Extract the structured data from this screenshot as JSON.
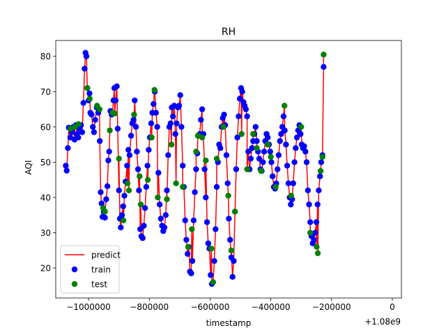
{
  "chart_data": {
    "type": "scatter",
    "title": "RH",
    "xlabel": "timestamp",
    "ylabel": "AQI",
    "x_offset_label": "+1.08e9",
    "xlim": [
      -1108000,
      30000
    ],
    "ylim": [
      11.5,
      84.5
    ],
    "grid": false,
    "legend_position": "lower-left",
    "x_ticks": [
      {
        "value": -1000000,
        "label": "−1000000"
      },
      {
        "value": -800000,
        "label": "−800000"
      },
      {
        "value": -600000,
        "label": "−600000"
      },
      {
        "value": -400000,
        "label": "−400000"
      },
      {
        "value": -200000,
        "label": "−200000"
      },
      {
        "value": 0,
        "label": "0"
      }
    ],
    "y_ticks": [
      {
        "value": 20,
        "label": "20"
      },
      {
        "value": 30,
        "label": "30"
      },
      {
        "value": 40,
        "label": "40"
      },
      {
        "value": 50,
        "label": "50"
      },
      {
        "value": 60,
        "label": "60"
      },
      {
        "value": 70,
        "label": "70"
      },
      {
        "value": 80,
        "label": "80"
      }
    ],
    "legend": [
      {
        "label": "predict",
        "kind": "line",
        "color": "#ff0000"
      },
      {
        "label": "train",
        "kind": "marker",
        "color": "#0000ff"
      },
      {
        "label": "test",
        "kind": "marker",
        "color": "#008000"
      }
    ],
    "colors": {
      "predict": "#ff0000",
      "train": "#0000ff",
      "test": "#008000"
    },
    "series": [
      {
        "name": "train",
        "points": [
          [
            -1075000,
            49
          ],
          [
            -1072000,
            47.6
          ],
          [
            -1068000,
            54
          ],
          [
            -1065000,
            59.8
          ],
          [
            -1060000,
            57
          ],
          [
            -1055000,
            58.5
          ],
          [
            -1050000,
            60
          ],
          [
            -1046000,
            56.4
          ],
          [
            -1042000,
            60.5
          ],
          [
            -1038000,
            58
          ],
          [
            -1034000,
            57
          ],
          [
            -1030000,
            59.5
          ],
          [
            -1025000,
            60.5
          ],
          [
            -1021000,
            58.5
          ],
          [
            -1017000,
            66.8
          ],
          [
            -1013000,
            76.5
          ],
          [
            -1010000,
            81
          ],
          [
            -1007000,
            80
          ],
          [
            -1004000,
            71
          ],
          [
            -1000000,
            67.5
          ],
          [
            -997000,
            69.5
          ],
          [
            -994000,
            64
          ],
          [
            -990000,
            63.5
          ],
          [
            -986000,
            60
          ],
          [
            -982000,
            58.5
          ],
          [
            -978000,
            62
          ],
          [
            -973000,
            65.5
          ],
          [
            -968000,
            64
          ],
          [
            -963000,
            56
          ],
          [
            -960000,
            41.5
          ],
          [
            -957000,
            38.3
          ],
          [
            -954000,
            34.5
          ],
          [
            -950000,
            36
          ],
          [
            -946000,
            34.3
          ],
          [
            -942000,
            39.5
          ],
          [
            -938000,
            43.2
          ],
          [
            -935000,
            50.5
          ],
          [
            -932000,
            53
          ],
          [
            -928000,
            64.5
          ],
          [
            -924000,
            63.5
          ],
          [
            -918000,
            67.5
          ],
          [
            -915000,
            71
          ],
          [
            -911000,
            67.5
          ],
          [
            -907000,
            71.5
          ],
          [
            -904000,
            59.5
          ],
          [
            -900000,
            42
          ],
          [
            -897000,
            34
          ],
          [
            -894000,
            31.5
          ],
          [
            -890000,
            35
          ],
          [
            -886000,
            37.5
          ],
          [
            -882000,
            40.5
          ],
          [
            -878000,
            44.5
          ],
          [
            -873000,
            49
          ],
          [
            -869000,
            53.5
          ],
          [
            -865000,
            52
          ],
          [
            -860000,
            57.5
          ],
          [
            -856000,
            61
          ],
          [
            -852000,
            62
          ],
          [
            -848000,
            67.5
          ],
          [
            -844000,
            60
          ],
          [
            -841000,
            53
          ],
          [
            -837000,
            48
          ],
          [
            -834000,
            42
          ],
          [
            -830000,
            31
          ],
          [
            -826000,
            29
          ],
          [
            -822000,
            28.5
          ],
          [
            -818000,
            32
          ],
          [
            -814000,
            37
          ],
          [
            -810000,
            43
          ],
          [
            -806000,
            49
          ],
          [
            -802000,
            53.5
          ],
          [
            -798000,
            57
          ],
          [
            -794000,
            61
          ],
          [
            -790000,
            64
          ],
          [
            -786000,
            66.5
          ],
          [
            -782000,
            70
          ],
          [
            -778000,
            64
          ],
          [
            -774000,
            60
          ],
          [
            -770000,
            47
          ],
          [
            -766000,
            38
          ],
          [
            -762000,
            34
          ],
          [
            -758000,
            32
          ],
          [
            -754000,
            30.5
          ],
          [
            -750000,
            31.5
          ],
          [
            -746000,
            35
          ],
          [
            -742000,
            42
          ],
          [
            -738000,
            52
          ],
          [
            -734000,
            60
          ],
          [
            -730000,
            61
          ],
          [
            -726000,
            65.5
          ],
          [
            -722000,
            63
          ],
          [
            -718000,
            66
          ],
          [
            -714000,
            58
          ],
          [
            -710000,
            61
          ],
          [
            -706000,
            65.5
          ],
          [
            -702000,
            66
          ],
          [
            -698000,
            69
          ],
          [
            -694000,
            60
          ],
          [
            -690000,
            49
          ],
          [
            -686000,
            43
          ],
          [
            -682000,
            33.5
          ],
          [
            -678000,
            28
          ],
          [
            -674000,
            24
          ],
          [
            -670000,
            26
          ],
          [
            -666000,
            19
          ],
          [
            -662000,
            18.5
          ],
          [
            -658000,
            22
          ],
          [
            -654000,
            33.5
          ],
          [
            -650000,
            41.5
          ],
          [
            -646000,
            48
          ],
          [
            -642000,
            52.5
          ],
          [
            -638000,
            57.5
          ],
          [
            -634000,
            58
          ],
          [
            -630000,
            62
          ],
          [
            -626000,
            65
          ],
          [
            -622000,
            58
          ],
          [
            -618000,
            48
          ],
          [
            -614000,
            40
          ],
          [
            -610000,
            33
          ],
          [
            -606000,
            27
          ],
          [
            -602000,
            25.5
          ],
          [
            -598000,
            18
          ],
          [
            -594000,
            15.5
          ],
          [
            -590000,
            16
          ],
          [
            -586000,
            22
          ],
          [
            -582000,
            31
          ],
          [
            -578000,
            43
          ],
          [
            -574000,
            50
          ],
          [
            -570000,
            55
          ],
          [
            -566000,
            54
          ],
          [
            -562000,
            60
          ],
          [
            -558000,
            62.5
          ],
          [
            -554000,
            63.5
          ],
          [
            -550000,
            60.5
          ],
          [
            -546000,
            52
          ],
          [
            -542000,
            44
          ],
          [
            -538000,
            34
          ],
          [
            -534000,
            28
          ],
          [
            -530000,
            23
          ],
          [
            -526000,
            17.5
          ],
          [
            -522000,
            22
          ],
          [
            -518000,
            36
          ],
          [
            -514000,
            48
          ],
          [
            -510000,
            57
          ],
          [
            -506000,
            63
          ],
          [
            -502000,
            68
          ],
          [
            -498000,
            71
          ],
          [
            -494000,
            70
          ],
          [
            -490000,
            67
          ],
          [
            -486000,
            66
          ],
          [
            -482000,
            65
          ],
          [
            -478000,
            63
          ],
          [
            -474000,
            53
          ],
          [
            -470000,
            48
          ],
          [
            -466000,
            51
          ],
          [
            -462000,
            54
          ],
          [
            -458000,
            56
          ],
          [
            -454000,
            58
          ],
          [
            -450000,
            60
          ],
          [
            -446000,
            56
          ],
          [
            -442000,
            53
          ],
          [
            -438000,
            51
          ],
          [
            -434000,
            48
          ],
          [
            -430000,
            47.5
          ],
          [
            -426000,
            50
          ],
          [
            -422000,
            53
          ],
          [
            -418000,
            56
          ],
          [
            -414000,
            58
          ],
          [
            -410000,
            57
          ],
          [
            -406000,
            55
          ],
          [
            -402000,
            53
          ],
          [
            -398000,
            50
          ],
          [
            -394000,
            46
          ],
          [
            -390000,
            43
          ],
          [
            -386000,
            42.5
          ],
          [
            -382000,
            44
          ],
          [
            -378000,
            48
          ],
          [
            -374000,
            52
          ],
          [
            -370000,
            56
          ],
          [
            -366000,
            58
          ],
          [
            -362000,
            60
          ],
          [
            -358000,
            63
          ],
          [
            -354000,
            59
          ],
          [
            -350000,
            55
          ],
          [
            -346000,
            49
          ],
          [
            -342000,
            44
          ],
          [
            -338000,
            40
          ],
          [
            -334000,
            38
          ],
          [
            -330000,
            39.5
          ],
          [
            -326000,
            44
          ],
          [
            -322000,
            50
          ],
          [
            -318000,
            54
          ],
          [
            -314000,
            57
          ],
          [
            -310000,
            59
          ],
          [
            -306000,
            60.5
          ],
          [
            -302000,
            58
          ],
          [
            -298000,
            55
          ],
          [
            -294000,
            54
          ],
          [
            -290000,
            54.5
          ],
          [
            -286000,
            53
          ],
          [
            -282000,
            50
          ],
          [
            -278000,
            42
          ],
          [
            -274000,
            38
          ],
          [
            -270000,
            33
          ],
          [
            -266000,
            29
          ],
          [
            -262000,
            27
          ],
          [
            -258000,
            28
          ],
          [
            -254000,
            30
          ],
          [
            -250000,
            33
          ],
          [
            -246000,
            38
          ],
          [
            -242000,
            42
          ],
          [
            -238000,
            46
          ],
          [
            -234000,
            50
          ],
          [
            -230000,
            52
          ],
          [
            -226000,
            77
          ]
        ]
      },
      {
        "name": "test",
        "points": [
          [
            -1060000,
            59.5
          ],
          [
            -1045000,
            60
          ],
          [
            -1033000,
            60.8
          ],
          [
            -1004000,
            71
          ],
          [
            -996000,
            68
          ],
          [
            -972000,
            66
          ],
          [
            -964000,
            65
          ],
          [
            -952000,
            37
          ],
          [
            -946000,
            36
          ],
          [
            -930000,
            59
          ],
          [
            -921000,
            64
          ],
          [
            -914000,
            63.8
          ],
          [
            -900000,
            51
          ],
          [
            -885000,
            33.5
          ],
          [
            -872000,
            44
          ],
          [
            -867000,
            42
          ],
          [
            -850000,
            63.5
          ],
          [
            -832000,
            46
          ],
          [
            -828000,
            38
          ],
          [
            -805000,
            45
          ],
          [
            -792000,
            57
          ],
          [
            -783000,
            70.5
          ],
          [
            -772000,
            40
          ],
          [
            -742000,
            39.5
          ],
          [
            -727000,
            55
          ],
          [
            -712000,
            44
          ],
          [
            -690000,
            43
          ],
          [
            -672000,
            26
          ],
          [
            -660000,
            31
          ],
          [
            -646000,
            53
          ],
          [
            -640000,
            57.5
          ],
          [
            -626000,
            57
          ],
          [
            -614000,
            50.5
          ],
          [
            -596000,
            25.5
          ],
          [
            -590000,
            16
          ],
          [
            -578000,
            51
          ],
          [
            -556000,
            60
          ],
          [
            -540000,
            40.5
          ],
          [
            -530000,
            25
          ],
          [
            -518000,
            36
          ],
          [
            -496000,
            58
          ],
          [
            -478000,
            48
          ],
          [
            -458000,
            58
          ],
          [
            -446000,
            54
          ],
          [
            -432000,
            47.5
          ],
          [
            -410000,
            55
          ],
          [
            -400000,
            51.5
          ],
          [
            -384000,
            43
          ],
          [
            -355000,
            66
          ],
          [
            -333000,
            40.5
          ],
          [
            -300000,
            60
          ],
          [
            -270000,
            30
          ],
          [
            -249000,
            26
          ],
          [
            -245000,
            24.2
          ],
          [
            -236000,
            47.5
          ],
          [
            -230000,
            51.5
          ],
          [
            -226000,
            80.5
          ]
        ]
      }
    ]
  }
}
